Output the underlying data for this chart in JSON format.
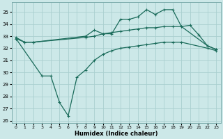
{
  "title": "",
  "xlabel": "Humidex (Indice chaleur)",
  "ylabel": "",
  "xlim": [
    -0.5,
    23.5
  ],
  "ylim": [
    25.8,
    35.8
  ],
  "yticks": [
    26,
    27,
    28,
    29,
    30,
    31,
    32,
    33,
    34,
    35
  ],
  "xticks": [
    0,
    1,
    2,
    3,
    4,
    5,
    6,
    7,
    8,
    9,
    10,
    11,
    12,
    13,
    14,
    15,
    16,
    17,
    18,
    19,
    20,
    21,
    22,
    23
  ],
  "bg_color": "#cce8e8",
  "grid_color": "#aacfcf",
  "line_color": "#1a6b5a",
  "line_width": 0.9,
  "marker": "+",
  "marker_size": 3.5,
  "marker_ew": 0.8,
  "series": [
    {
      "x": [
        0,
        1,
        2,
        8,
        9,
        10,
        11,
        12,
        13,
        14,
        15,
        16,
        17,
        18,
        19,
        20,
        21,
        22,
        23
      ],
      "y": [
        32.9,
        32.5,
        32.5,
        33.0,
        33.5,
        33.2,
        33.2,
        34.4,
        34.4,
        34.6,
        35.2,
        34.8,
        35.2,
        35.2,
        33.8,
        33.9,
        33.1,
        32.2,
        31.9
      ]
    },
    {
      "x": [
        0,
        1,
        2,
        8,
        9,
        10,
        11,
        12,
        13,
        14,
        15,
        16,
        17,
        18,
        19,
        22,
        23
      ],
      "y": [
        32.8,
        32.5,
        32.5,
        32.9,
        33.0,
        33.2,
        33.3,
        33.4,
        33.5,
        33.6,
        33.7,
        33.7,
        33.8,
        33.8,
        33.8,
        32.2,
        31.9
      ]
    },
    {
      "x": [
        0,
        3,
        4,
        5,
        6,
        7,
        8,
        9,
        10,
        11,
        12,
        13,
        14,
        15,
        16,
        17,
        18,
        19,
        22,
        23
      ],
      "y": [
        32.8,
        29.7,
        29.7,
        27.5,
        26.4,
        29.6,
        30.2,
        31.0,
        31.5,
        31.8,
        32.0,
        32.1,
        32.2,
        32.3,
        32.4,
        32.5,
        32.5,
        32.5,
        32.0,
        31.8
      ]
    }
  ]
}
